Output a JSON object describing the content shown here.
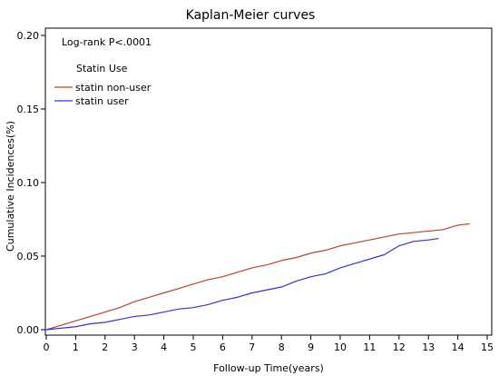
{
  "chart_data": {
    "type": "line",
    "title": "Kaplan-Meier curves",
    "xlabel": "Follow-up Time(years)",
    "ylabel": "Cumulative Incidences(%)",
    "xlim": [
      0,
      15
    ],
    "ylim": [
      0,
      0.2
    ],
    "x_ticks": [
      0,
      1,
      2,
      3,
      4,
      5,
      6,
      7,
      8,
      9,
      10,
      11,
      12,
      13,
      14,
      15
    ],
    "x_tick_labels": [
      "0",
      "1",
      "2",
      "3",
      "4",
      "5",
      "6",
      "7",
      "8",
      "9",
      "10",
      "11",
      "12",
      "13",
      "14",
      "15"
    ],
    "y_ticks": [
      0,
      0.05,
      0.1,
      0.15,
      0.2
    ],
    "y_tick_labels": [
      "0.00",
      "0.05",
      "0.10",
      "0.15",
      "0.20"
    ],
    "grid": false,
    "legend_placement": "top-left",
    "annotation": "Log-rank P<.0001",
    "legend_title": "Statin Use",
    "series": [
      {
        "name": "statin non-user",
        "color": "#b5452e",
        "x": [
          0,
          0.5,
          1,
          1.5,
          2,
          2.5,
          3,
          3.5,
          4,
          4.5,
          5,
          5.5,
          6,
          6.5,
          7,
          7.5,
          8,
          8.5,
          9,
          9.5,
          10,
          10.5,
          11,
          11.5,
          12,
          12.5,
          13,
          13.5,
          14,
          14.4
        ],
        "y": [
          0,
          0.003,
          0.006,
          0.009,
          0.012,
          0.015,
          0.019,
          0.022,
          0.025,
          0.028,
          0.031,
          0.034,
          0.036,
          0.039,
          0.042,
          0.044,
          0.047,
          0.049,
          0.052,
          0.054,
          0.057,
          0.059,
          0.061,
          0.063,
          0.065,
          0.066,
          0.067,
          0.068,
          0.071,
          0.072
        ]
      },
      {
        "name": "statin user",
        "color": "#3333dd",
        "x": [
          0,
          0.5,
          1,
          1.5,
          2,
          2.5,
          3,
          3.5,
          4,
          4.5,
          5,
          5.5,
          6,
          6.5,
          7,
          7.5,
          8,
          8.5,
          9,
          9.5,
          10,
          10.5,
          11,
          11.5,
          12,
          12.5,
          13,
          13.35
        ],
        "y": [
          0,
          0.001,
          0.002,
          0.004,
          0.005,
          0.007,
          0.009,
          0.01,
          0.012,
          0.014,
          0.015,
          0.017,
          0.02,
          0.022,
          0.025,
          0.027,
          0.029,
          0.033,
          0.036,
          0.038,
          0.042,
          0.045,
          0.048,
          0.051,
          0.057,
          0.06,
          0.061,
          0.062
        ]
      }
    ]
  }
}
